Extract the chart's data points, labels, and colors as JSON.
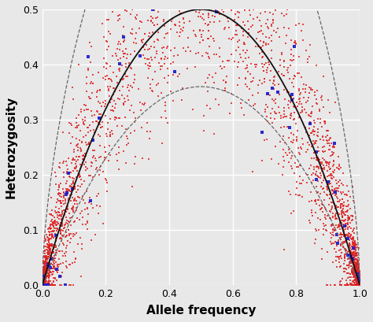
{
  "title": "",
  "xlabel": "Allele frequency",
  "ylabel": "Heterozygosity",
  "xlim": [
    0.0,
    1.0
  ],
  "ylim": [
    0.0,
    0.5
  ],
  "xticks": [
    0.0,
    0.2,
    0.4,
    0.6,
    0.8,
    1.0
  ],
  "yticks": [
    0.0,
    0.1,
    0.2,
    0.3,
    0.4,
    0.5
  ],
  "background_color": "#e8e8e8",
  "grid_color": "#ffffff",
  "red_color": "#dd2020",
  "blue_color": "#2020cc",
  "curve_color": "#111111",
  "dashed_color": "#666666",
  "n_red_edge": 1800,
  "n_red_mid": 600,
  "n_blue": 60,
  "seed": 42,
  "n_outer": 10,
  "n_inner": 50,
  "figsize": [
    4.74,
    4.09
  ],
  "dpi": 100
}
